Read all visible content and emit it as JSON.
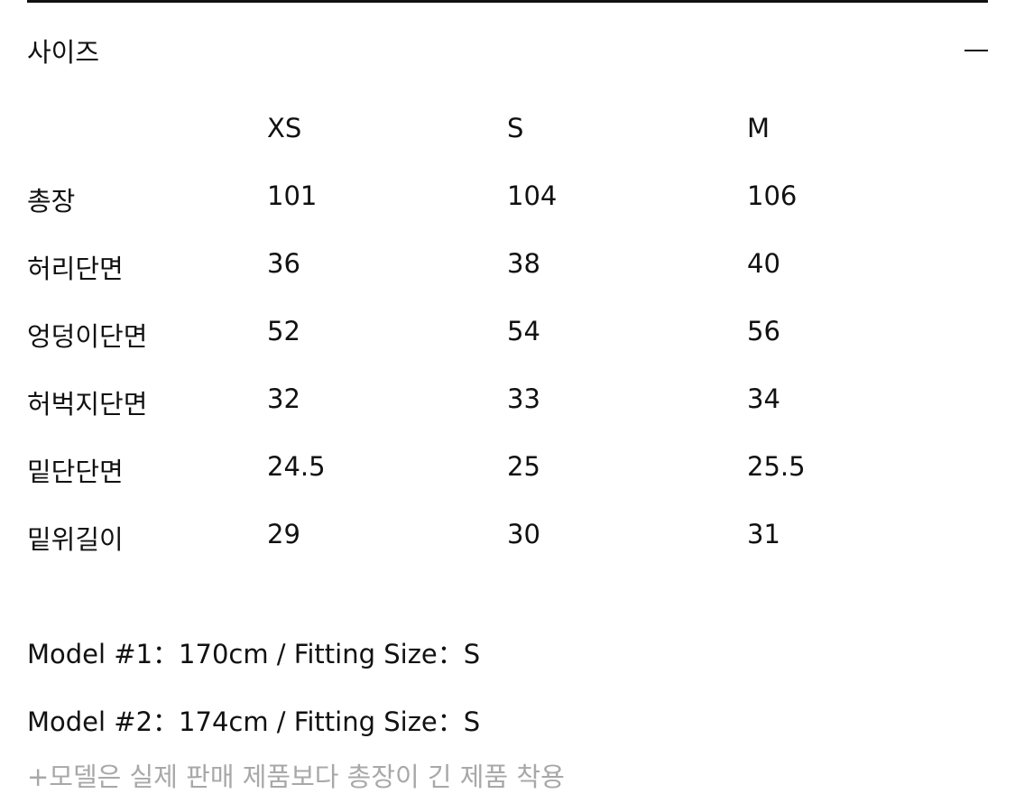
{
  "section": {
    "title": "사이즈",
    "collapse_icon": "minus-icon"
  },
  "table": {
    "headers": [
      "",
      "XS",
      "S",
      "M"
    ],
    "rows": [
      [
        "총장",
        "101",
        "104",
        "106"
      ],
      [
        "허리단면",
        "36",
        "38",
        "40"
      ],
      [
        "엉덩이단면",
        "52",
        "54",
        "56"
      ],
      [
        "허벅지단면",
        "32",
        "33",
        "34"
      ],
      [
        "밑단단면",
        "24.5",
        "25",
        "25.5"
      ],
      [
        "밑위길이",
        "29",
        "30",
        "31"
      ]
    ]
  },
  "models": [
    "Model #1：170cm / Fitting Size：S",
    "Model #2：174cm / Fitting Size：S"
  ],
  "note": "+모델은 실제 판매 제품보다 총장이 긴 제품 착용"
}
